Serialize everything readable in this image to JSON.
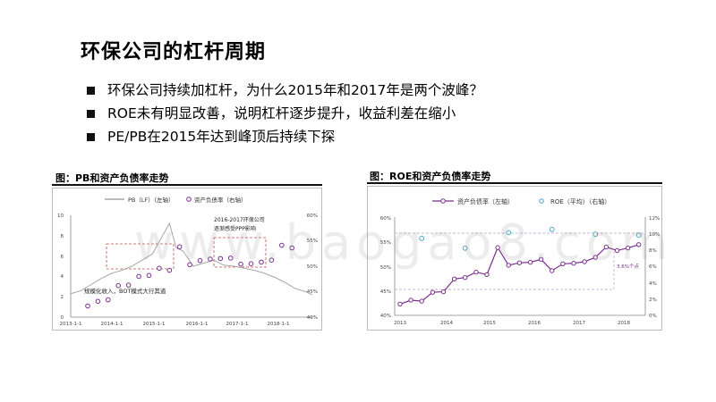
{
  "slide": {
    "title": "环保公司的杠杆周期",
    "bullets": [
      "环保公司持续加杠杆，为什么2015年和2017年是两个波峰？",
      "ROE未有明显改善，说明杠杆逐步提升，收益利差在缩小",
      "PE/PB在2015年达到峰顶后持续下探"
    ]
  },
  "watermark": "www.baogao8.com",
  "colors": {
    "series_purple": "#7a2f8e",
    "pb_gray": "#a6a6a6",
    "roe_teal": "#4bacc6",
    "highlight_red": "#c0504d"
  },
  "chart_left": {
    "caption": "图：PB和资产负债率走势",
    "legend": [
      "PB（LF）（左轴）",
      "资产负债率（右轴）"
    ],
    "annotation_top": [
      "2016-2017环保公司",
      "逐渐感受PPP影响"
    ],
    "annotation_bottom": "规模化收入，BOT模式大行其道",
    "y_left_ticks": [
      "10",
      "8",
      "6",
      "4",
      "2",
      "0"
    ],
    "y_right_ticks": [
      "60%",
      "55%",
      "50%",
      "45%",
      "40%"
    ],
    "x_ticks": [
      "2013-1-1",
      "2014-1-1",
      "2015-1-1",
      "2016-1-1",
      "2017-1-1",
      "2018-1-1"
    ]
  },
  "chart_right": {
    "caption": "图：ROE和资产负债率走势",
    "legend": [
      "资产负债率（左轴）",
      "ROE（平均）（右轴）"
    ],
    "annotation": "3.6%个点",
    "y_left_ticks": [
      "60%",
      "55%",
      "50%",
      "45%",
      "40%"
    ],
    "y_right_ticks": [
      "12%",
      "10%",
      "8%",
      "6%",
      "4%",
      "2%",
      "0%"
    ],
    "x_ticks": [
      "2013",
      "2014",
      "2015",
      "2016",
      "2017",
      "2018"
    ]
  },
  "chart_data": [
    {
      "type": "line",
      "title": "图：PB和资产负债率走势",
      "x_range": [
        "2013-01",
        "2018-12"
      ],
      "ylim_left": [
        0,
        10
      ],
      "ylim_right": [
        0.4,
        0.6
      ],
      "series": [
        {
          "name": "PB（LF）（左轴）",
          "axis": "left",
          "x": [
            "2013-01",
            "2013-04",
            "2013-07",
            "2013-10",
            "2014-01",
            "2014-04",
            "2014-07",
            "2014-10",
            "2015-01",
            "2015-04",
            "2015-06",
            "2015-08",
            "2015-10",
            "2016-01",
            "2016-04",
            "2016-07",
            "2016-10",
            "2017-01",
            "2017-04",
            "2017-07",
            "2017-10",
            "2018-01",
            "2018-04",
            "2018-07",
            "2018-10",
            "2018-12"
          ],
          "values": [
            2.3,
            2.6,
            3.2,
            3.8,
            4.3,
            4.6,
            5.0,
            5.6,
            6.2,
            8.0,
            9.2,
            6.8,
            6.5,
            5.0,
            5.3,
            5.6,
            5.1,
            5.0,
            4.8,
            4.6,
            4.3,
            3.9,
            3.4,
            2.8,
            2.5,
            2.2
          ]
        },
        {
          "name": "资产负债率（右轴）",
          "axis": "right",
          "x": [
            "2013-06",
            "2013-09",
            "2013-12",
            "2014-03",
            "2014-06",
            "2014-09",
            "2014-12",
            "2015-03",
            "2015-06",
            "2015-09",
            "2015-12",
            "2016-03",
            "2016-06",
            "2016-09",
            "2016-12",
            "2017-03",
            "2017-06",
            "2017-09",
            "2017-12",
            "2018-03",
            "2018-06"
          ],
          "values": [
            0.422,
            0.431,
            0.434,
            0.462,
            0.463,
            0.48,
            0.482,
            0.496,
            0.492,
            0.538,
            0.503,
            0.511,
            0.514,
            0.515,
            0.516,
            0.504,
            0.505,
            0.508,
            0.512,
            0.541,
            0.536
          ]
        }
      ]
    },
    {
      "type": "line",
      "title": "图：ROE和资产负债率走势",
      "x_range": [
        "2013",
        "2018"
      ],
      "ylim_left": [
        0.4,
        0.6
      ],
      "ylim_right": [
        0,
        0.12
      ],
      "series": [
        {
          "name": "资产负债率（左轴）",
          "axis": "left",
          "x": [
            "2013Q1",
            "2013Q2",
            "2013Q3",
            "2013Q4",
            "2014Q1",
            "2014Q2",
            "2014Q3",
            "2014Q4",
            "2015Q1",
            "2015Q2",
            "2015Q3",
            "2015Q4",
            "2016Q1",
            "2016Q2",
            "2016Q3",
            "2016Q4",
            "2017Q1",
            "2017Q2",
            "2017Q3",
            "2017Q4",
            "2018Q1",
            "2018Q2",
            "2018Q3"
          ],
          "values": [
            0.423,
            0.431,
            0.429,
            0.447,
            0.448,
            0.474,
            0.477,
            0.488,
            0.483,
            0.538,
            0.502,
            0.507,
            0.508,
            0.514,
            0.491,
            0.505,
            0.506,
            0.509,
            0.518,
            0.539,
            0.532,
            0.537,
            0.544
          ]
        },
        {
          "name": "ROE（平均）（右轴）",
          "axis": "right",
          "x": [
            "2013",
            "2014",
            "2015",
            "2016",
            "2017",
            "2018"
          ],
          "values": [
            0.094,
            0.082,
            0.101,
            0.105,
            0.099,
            0.098
          ]
        }
      ]
    }
  ]
}
